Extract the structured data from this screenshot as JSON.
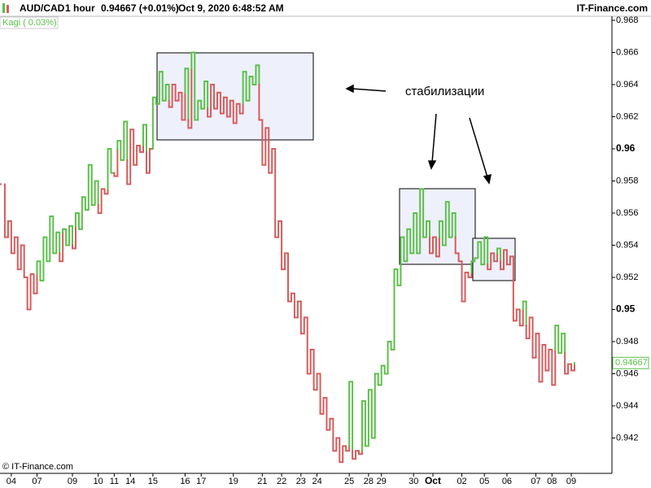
{
  "header": {
    "symbol": "AUD/CAD",
    "interval": "1 hour",
    "quote": "0.94667 (+0.01%)",
    "datetime": "Oct 9, 2020 6:48:52 AM",
    "brand": "IT-Finance.com"
  },
  "chart_data": {
    "type": "kagi",
    "indicator": "Kagi ( 0.03%)",
    "copyright": "© IT-Finance.com",
    "annotation": "стабилизации",
    "up_color": "#5cc04a",
    "down_color": "#d65c5c",
    "values": [
      0.9578,
      0.9545,
      0.9555,
      0.9535,
      0.9545,
      0.9525,
      0.954,
      0.952,
      0.95,
      0.9522,
      0.951,
      0.953,
      0.9518,
      0.9545,
      0.953,
      0.9558,
      0.9535,
      0.9548,
      0.953,
      0.955,
      0.954,
      0.9552,
      0.9538,
      0.956,
      0.955,
      0.957,
      0.9562,
      0.959,
      0.9565,
      0.958,
      0.956,
      0.9575,
      0.9572,
      0.96,
      0.9585,
      0.9583,
      0.9605,
      0.9593,
      0.9617,
      0.9578,
      0.9612,
      0.959,
      0.9602,
      0.9598,
      0.9615,
      0.9585,
      0.96,
      0.9632,
      0.9628,
      0.9648,
      0.963,
      0.964,
      0.9626,
      0.964,
      0.963,
      0.9635,
      0.9618,
      0.965,
      0.9613,
      0.966,
      0.9618,
      0.963,
      0.9625,
      0.9642,
      0.962,
      0.964,
      0.9625,
      0.9635,
      0.9622,
      0.9632,
      0.962,
      0.963,
      0.9616,
      0.9628,
      0.9622,
      0.9648,
      0.963,
      0.9645,
      0.964,
      0.9652,
      0.9618,
      0.959,
      0.9613,
      0.9585,
      0.96,
      0.9545,
      0.9555,
      0.9525,
      0.9535,
      0.9505,
      0.951,
      0.9495,
      0.9505,
      0.9485,
      0.9495,
      0.946,
      0.9475,
      0.945,
      0.946,
      0.9435,
      0.9445,
      0.9425,
      0.9432,
      0.9412,
      0.942,
      0.9405,
      0.9415,
      0.9412,
      0.9455,
      0.9407,
      0.9412,
      0.941,
      0.9443,
      0.9415,
      0.945,
      0.942,
      0.946,
      0.9453,
      0.9465,
      0.946,
      0.948,
      0.9475,
      0.9525,
      0.9515,
      0.9545,
      0.953,
      0.955,
      0.9535,
      0.956,
      0.9535,
      0.9575,
      0.9545,
      0.9555,
      0.9535,
      0.9545,
      0.9533,
      0.9555,
      0.954,
      0.9567,
      0.9545,
      0.956,
      0.9535,
      0.953,
      0.9505,
      0.9523,
      0.952,
      0.953,
      0.9532,
      0.9542,
      0.9528,
      0.9545,
      0.9525,
      0.9535,
      0.953,
      0.9538,
      0.9525,
      0.9537,
      0.9528,
      0.9533,
      0.9493,
      0.95,
      0.949,
      0.9505,
      0.9482,
      0.9495,
      0.947,
      0.9485,
      0.9455,
      0.9478,
      0.9462,
      0.9475,
      0.9453,
      0.949,
      0.9473,
      0.9485,
      0.946,
      0.9466,
      0.9462,
      0.94667
    ],
    "xticks": [
      {
        "value": 3,
        "label": "04"
      },
      {
        "value": 11,
        "label": "07"
      },
      {
        "value": 22,
        "label": "09"
      },
      {
        "value": 30,
        "label": "10"
      },
      {
        "value": 35,
        "label": "11"
      },
      {
        "value": 40,
        "label": "14"
      },
      {
        "value": 47,
        "label": "15"
      },
      {
        "value": 57,
        "label": "16"
      },
      {
        "value": 62,
        "label": "17"
      },
      {
        "value": 72,
        "label": "19"
      },
      {
        "value": 81,
        "label": "21"
      },
      {
        "value": 87,
        "label": "22"
      },
      {
        "value": 93,
        "label": "23"
      },
      {
        "value": 98,
        "label": "24"
      },
      {
        "value": 108,
        "label": "25"
      },
      {
        "value": 114,
        "label": "28"
      },
      {
        "value": 118,
        "label": "29"
      },
      {
        "value": 128,
        "label": "30"
      },
      {
        "value": 134,
        "label": "Oct"
      },
      {
        "value": 143,
        "label": "02"
      },
      {
        "value": 150,
        "label": "05"
      },
      {
        "value": 157,
        "label": "06"
      },
      {
        "value": 166,
        "label": "07"
      },
      {
        "value": 171,
        "label": "08"
      },
      {
        "value": 177,
        "label": "09"
      }
    ],
    "ylim": [
      0.94,
      0.968
    ],
    "yticks": [
      0.942,
      0.944,
      0.946,
      0.948,
      0.95,
      0.952,
      0.954,
      0.956,
      0.958,
      0.96,
      0.962,
      0.964,
      0.966,
      0.968
    ]
  }
}
